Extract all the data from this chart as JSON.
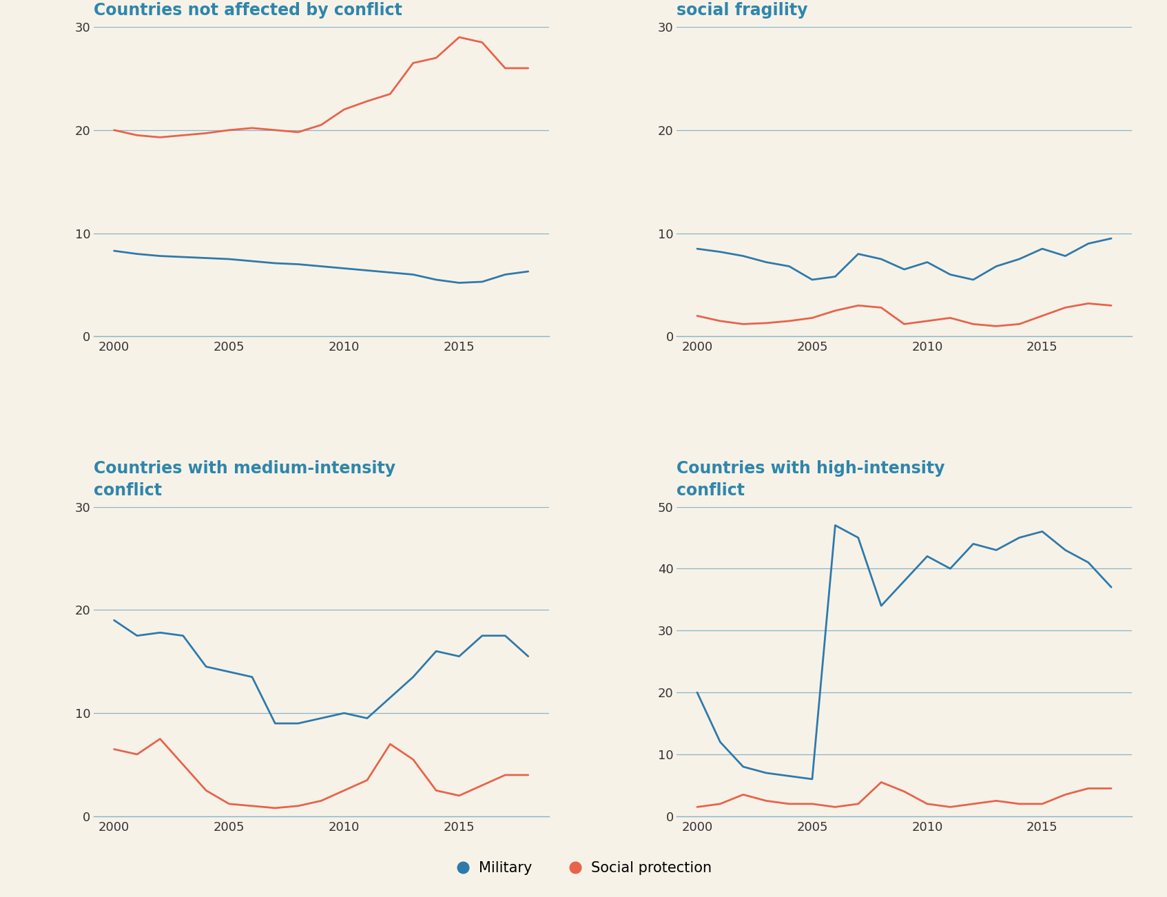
{
  "background_color": "#f7f2e8",
  "title_color": "#2e86ab",
  "military_color": "#2e7aab",
  "social_color": "#e8634a",
  "grid_color": "#8ab4c8",
  "axis_color": "#8ab4c8",
  "tick_color": "#333333",
  "title_fontsize": 17,
  "tick_fontsize": 13,
  "legend_fontsize": 15,
  "line_width": 2.0,
  "years": [
    2000,
    2001,
    2002,
    2003,
    2004,
    2005,
    2006,
    2007,
    2008,
    2009,
    2010,
    2011,
    2012,
    2013,
    2014,
    2015,
    2016,
    2017,
    2018
  ],
  "panel_a": {
    "title": "Countries not affected by conflict",
    "ylim": [
      0,
      30
    ],
    "yticks": [
      0,
      10,
      20,
      30
    ],
    "military": [
      8.3,
      8.0,
      7.8,
      7.7,
      7.6,
      7.5,
      7.3,
      7.1,
      7.0,
      6.8,
      6.6,
      6.4,
      6.2,
      6.0,
      5.5,
      5.2,
      5.3,
      6.0,
      6.3
    ],
    "social_protection": [
      20.0,
      19.5,
      19.3,
      19.5,
      19.7,
      20.0,
      20.2,
      20.0,
      19.8,
      20.5,
      22.0,
      22.8,
      23.5,
      26.5,
      27.0,
      29.0,
      28.5,
      26.0,
      26.0
    ]
  },
  "panel_b": {
    "title": "Countries with high institutional/\nsocial fragility",
    "ylim": [
      0,
      30
    ],
    "yticks": [
      0,
      10,
      20,
      30
    ],
    "military": [
      8.5,
      8.2,
      7.8,
      7.2,
      6.8,
      5.5,
      5.8,
      8.0,
      7.5,
      6.5,
      7.2,
      6.0,
      5.5,
      6.8,
      7.5,
      8.5,
      7.8,
      9.0,
      9.5
    ],
    "social_protection": [
      2.0,
      1.5,
      1.2,
      1.3,
      1.5,
      1.8,
      2.5,
      3.0,
      2.8,
      1.2,
      1.5,
      1.8,
      1.2,
      1.0,
      1.2,
      2.0,
      2.8,
      3.2,
      3.0
    ]
  },
  "panel_c": {
    "title": "Countries with medium-intensity\nconflict",
    "ylim": [
      0,
      30
    ],
    "yticks": [
      0,
      10,
      20,
      30
    ],
    "military": [
      19.0,
      17.5,
      17.8,
      17.5,
      14.5,
      14.0,
      13.5,
      9.0,
      9.0,
      9.5,
      10.0,
      9.5,
      11.5,
      13.5,
      16.0,
      15.5,
      17.5,
      17.5,
      15.5
    ],
    "social_protection": [
      6.5,
      6.0,
      7.5,
      5.0,
      2.5,
      1.2,
      1.0,
      0.8,
      1.0,
      1.5,
      2.5,
      3.5,
      7.0,
      5.5,
      2.5,
      2.0,
      3.0,
      4.0,
      4.0
    ]
  },
  "panel_d": {
    "title": "Countries with high-intensity\nconflict",
    "ylim": [
      0,
      50
    ],
    "yticks": [
      0,
      10,
      20,
      30,
      40,
      50
    ],
    "military": [
      20.0,
      12.0,
      8.0,
      7.0,
      6.5,
      6.0,
      47.0,
      45.0,
      34.0,
      38.0,
      42.0,
      40.0,
      44.0,
      43.0,
      45.0,
      46.0,
      43.0,
      41.0,
      37.0
    ],
    "social_protection": [
      1.5,
      2.0,
      3.5,
      2.5,
      2.0,
      2.0,
      1.5,
      2.0,
      5.5,
      4.0,
      2.0,
      1.5,
      2.0,
      2.5,
      2.0,
      2.0,
      3.5,
      4.5,
      4.5
    ]
  },
  "xticks": [
    2000,
    2005,
    2010,
    2015
  ],
  "legend_military": "Military",
  "legend_social": "Social protection"
}
